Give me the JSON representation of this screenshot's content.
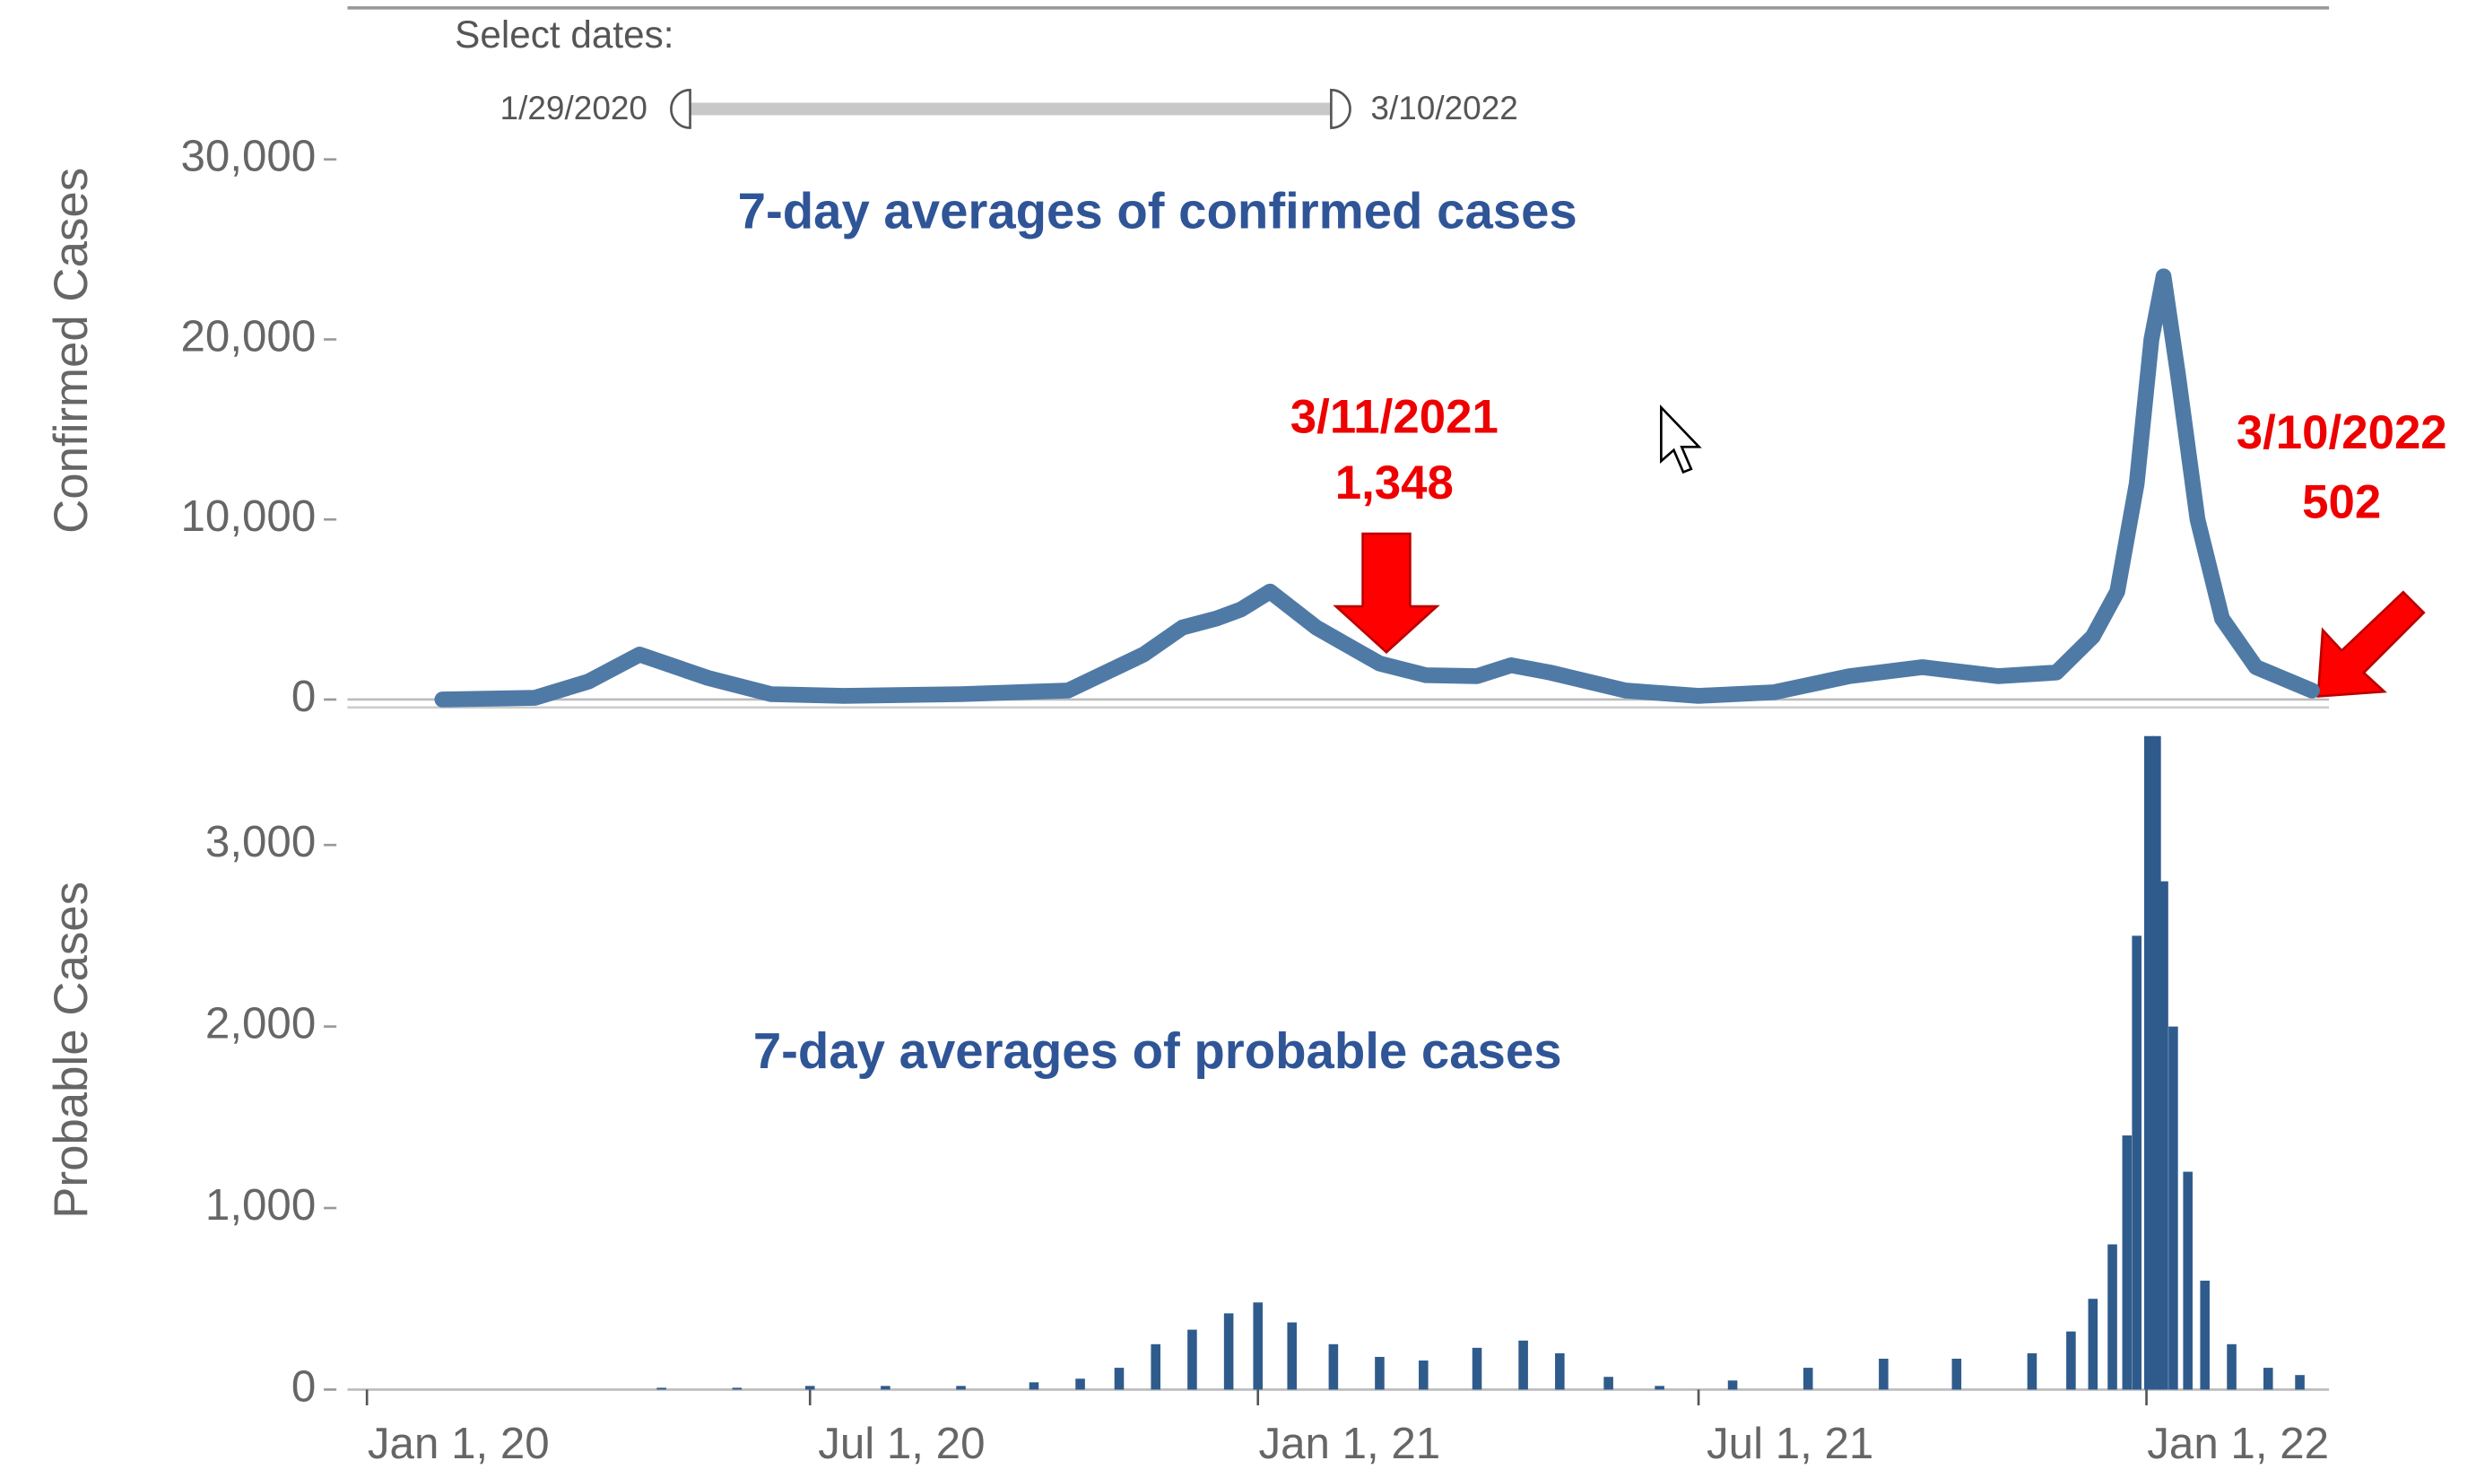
{
  "slider": {
    "label": "Select dates:",
    "start": "1/29/2020",
    "end": "3/10/2022"
  },
  "chart_data": [
    {
      "type": "line",
      "title": "7-day averages of confirmed cases",
      "ylabel": "Confirmed Cases",
      "color": "#4f7aa6",
      "x": [
        "2020-02-01",
        "2020-03-10",
        "2020-04-01",
        "2020-04-22",
        "2020-05-20",
        "2020-06-15",
        "2020-07-15",
        "2020-09-01",
        "2020-10-15",
        "2020-11-15",
        "2020-12-01",
        "2020-12-15",
        "2020-12-25",
        "2021-01-06",
        "2021-01-25",
        "2021-02-20",
        "2021-03-11",
        "2021-04-01",
        "2021-04-15",
        "2021-05-01",
        "2021-06-01",
        "2021-07-01",
        "2021-08-01",
        "2021-09-01",
        "2021-10-01",
        "2021-11-01",
        "2021-11-25",
        "2021-12-10",
        "2021-12-20",
        "2021-12-28",
        "2022-01-03",
        "2022-01-08",
        "2022-01-14",
        "2022-01-22",
        "2022-02-01",
        "2022-02-15",
        "2022-03-10"
      ],
      "values": [
        0,
        100,
        1000,
        2500,
        1200,
        300,
        200,
        300,
        500,
        2500,
        4000,
        4500,
        5000,
        6000,
        4000,
        2000,
        1348,
        1300,
        1900,
        1500,
        500,
        200,
        400,
        1300,
        1800,
        1300,
        1500,
        3500,
        6000,
        12000,
        20000,
        23500,
        18000,
        10000,
        4500,
        1800,
        502
      ],
      "xlim": [
        "2019-12-24",
        "2022-03-17"
      ],
      "ylim": [
        0,
        38150
      ],
      "yticks": [
        0,
        {
          "value": 10000,
          "label": "10,000"
        },
        {
          "value": 20000,
          "label": "20,000"
        },
        {
          "value": 30000,
          "label": "30,000"
        }
      ],
      "annotations": [
        {
          "date": "3/11/2021",
          "value": "1,348"
        },
        {
          "date": "3/10/2022",
          "value": "502"
        }
      ]
    },
    {
      "type": "bar",
      "title": "7-day averages of probable cases",
      "ylabel": "Probable Cases",
      "color": "#2f5b8c",
      "x": [
        "2020-05-01",
        "2020-06-01",
        "2020-07-01",
        "2020-08-01",
        "2020-09-01",
        "2020-10-01",
        "2020-10-20",
        "2020-11-05",
        "2020-11-20",
        "2020-12-05",
        "2020-12-20",
        "2021-01-01",
        "2021-01-15",
        "2021-02-01",
        "2021-02-20",
        "2021-03-10",
        "2021-04-01",
        "2021-04-20",
        "2021-05-05",
        "2021-05-25",
        "2021-06-15",
        "2021-07-15",
        "2021-08-15",
        "2021-09-15",
        "2021-10-15",
        "2021-11-15",
        "2021-12-01",
        "2021-12-10",
        "2021-12-18",
        "2021-12-24",
        "2021-12-28",
        "2022-01-02",
        "2022-01-05",
        "2022-01-08",
        "2022-01-12",
        "2022-01-18",
        "2022-01-25",
        "2022-02-05",
        "2022-02-20",
        "2022-03-05"
      ],
      "values": [
        10,
        10,
        20,
        20,
        20,
        40,
        60,
        120,
        250,
        330,
        420,
        480,
        370,
        250,
        180,
        160,
        230,
        270,
        200,
        70,
        20,
        50,
        120,
        170,
        170,
        200,
        320,
        500,
        800,
        1400,
        2500,
        3600,
        3600,
        2800,
        2000,
        1200,
        600,
        250,
        120,
        80
      ],
      "xlim": [
        "2019-12-24",
        "2022-03-17"
      ],
      "ylim": [
        0,
        3610
      ],
      "yticks": [
        0,
        {
          "value": 1000,
          "label": "1,000"
        },
        {
          "value": 2000,
          "label": "2,000"
        },
        {
          "value": 3000,
          "label": "3,000"
        }
      ],
      "xticks": [
        {
          "value": "2020-01-01",
          "label": "Jan 1, 20"
        },
        {
          "value": "2020-07-01",
          "label": "Jul 1, 20"
        },
        {
          "value": "2021-01-01",
          "label": "Jan 1, 21"
        },
        {
          "value": "2021-07-01",
          "label": "Jul 1, 21"
        },
        {
          "value": "2022-01-01",
          "label": "Jan 1, 22"
        }
      ]
    }
  ]
}
